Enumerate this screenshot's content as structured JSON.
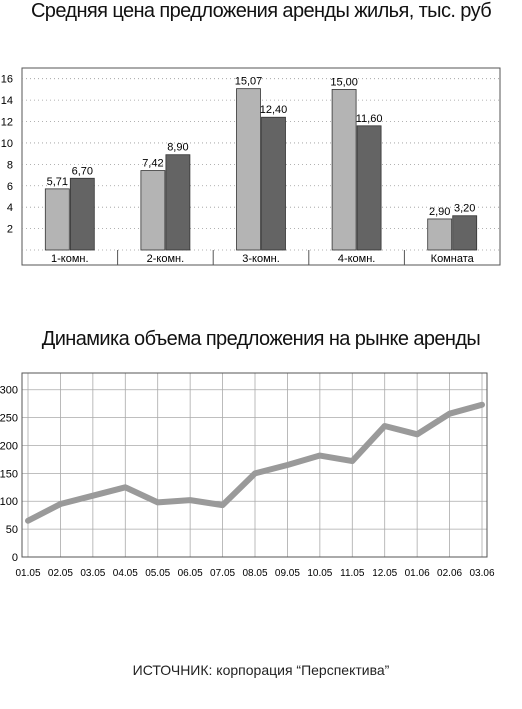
{
  "header": {
    "chart1_title": "Средняя цена предложения аренды жилья, тыс. руб",
    "chart2_title": "Динамика объема предложения на рынке аренды"
  },
  "footer": {
    "source": "ИСТОЧНИК: корпорация “Перспектива”"
  },
  "colors": {
    "bar_light": "#b4b4b4",
    "bar_dark": "#646464",
    "line": "#9a9a9a",
    "grid": "#999999"
  },
  "chart_data": [
    {
      "type": "bar",
      "categories": [
        "1-комн.",
        "2-комн.",
        "3-комн.",
        "4-комн.",
        "Комната"
      ],
      "series": [
        {
          "values": [
            5.71,
            7.42,
            15.07,
            15.0,
            2.9
          ],
          "labels": [
            "5,71",
            "7,42",
            "15,07",
            "15,00",
            "2,90"
          ]
        },
        {
          "values": [
            6.7,
            8.9,
            12.4,
            11.6,
            3.2
          ],
          "labels": [
            "6,70",
            "8,90",
            "12,40",
            "11,60",
            "3,20"
          ]
        }
      ],
      "yticks": [
        2,
        4,
        6,
        8,
        10,
        12,
        14,
        16
      ],
      "ylim": [
        0,
        17
      ],
      "grid": true
    },
    {
      "type": "line",
      "x": [
        "01.05",
        "02.05",
        "03.05",
        "04.05",
        "05.05",
        "06.05",
        "07.05",
        "08.05",
        "09.05",
        "10.05",
        "11.05",
        "12.05",
        "01.06",
        "02.06",
        "03.06"
      ],
      "values": [
        65,
        95,
        110,
        125,
        98,
        102,
        93,
        150,
        165,
        182,
        172,
        235,
        220,
        257,
        273
      ],
      "yticks": [
        0,
        50,
        100,
        150,
        200,
        250,
        300
      ],
      "ylim": [
        0,
        330
      ],
      "grid": true
    }
  ]
}
